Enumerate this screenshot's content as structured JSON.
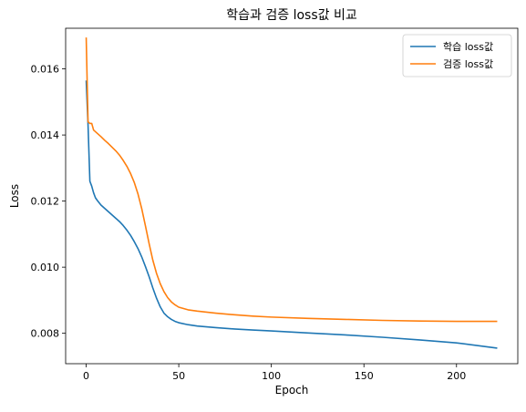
{
  "chart_data": {
    "type": "line",
    "title": "학습과 검증 loss값 비교",
    "xlabel": "Epoch",
    "ylabel": "Loss",
    "xlim": [
      -11.1,
      233.1
    ],
    "ylim": [
      0.00708,
      0.01723
    ],
    "xticks": [
      0,
      50,
      100,
      150,
      200
    ],
    "yticks": [
      0.008,
      0.01,
      0.012,
      0.014,
      0.016
    ],
    "ytick_labels": [
      "0.008",
      "0.010",
      "0.012",
      "0.014",
      "0.016"
    ],
    "grid": false,
    "legend": "top-right",
    "series": [
      {
        "name": "학습 loss값",
        "color": "#1f77b4",
        "x": [
          0,
          1,
          2,
          3,
          4,
          5,
          6,
          8,
          10,
          12,
          14,
          16,
          18,
          20,
          22,
          24,
          26,
          28,
          30,
          32,
          34,
          36,
          38,
          40,
          42,
          44,
          46,
          48,
          50,
          55,
          60,
          70,
          80,
          90,
          100,
          120,
          140,
          160,
          180,
          200,
          222
        ],
        "y": [
          0.01565,
          0.0143,
          0.0126,
          0.01245,
          0.01225,
          0.0121,
          0.01202,
          0.01188,
          0.01178,
          0.01168,
          0.01158,
          0.01148,
          0.01138,
          0.01126,
          0.01112,
          0.01096,
          0.01077,
          0.01056,
          0.01031,
          0.01002,
          0.00971,
          0.00937,
          0.00906,
          0.0088,
          0.00861,
          0.0085,
          0.00842,
          0.00836,
          0.00832,
          0.00826,
          0.00822,
          0.00817,
          0.00813,
          0.0081,
          0.00807,
          0.00801,
          0.00795,
          0.00788,
          0.0078,
          0.00771,
          0.00755
        ]
      },
      {
        "name": "검증 loss값",
        "color": "#ff7f0e",
        "x": [
          0,
          1,
          2,
          3,
          4,
          6,
          8,
          10,
          12,
          14,
          16,
          18,
          20,
          22,
          24,
          26,
          28,
          30,
          32,
          34,
          36,
          38,
          40,
          42,
          44,
          46,
          48,
          50,
          55,
          60,
          70,
          80,
          90,
          100,
          120,
          140,
          160,
          180,
          200,
          222
        ],
        "y": [
          0.01695,
          0.0144,
          0.01435,
          0.01435,
          0.01415,
          0.01405,
          0.01395,
          0.01384,
          0.01374,
          0.01363,
          0.01352,
          0.01339,
          0.01323,
          0.01305,
          0.01283,
          0.01256,
          0.01221,
          0.01177,
          0.01125,
          0.01071,
          0.01021,
          0.00981,
          0.0095,
          0.00926,
          0.00908,
          0.00895,
          0.00886,
          0.00879,
          0.00871,
          0.00867,
          0.00861,
          0.00856,
          0.00852,
          0.00849,
          0.00845,
          0.00842,
          0.00839,
          0.00837,
          0.00836,
          0.00836
        ]
      }
    ]
  }
}
